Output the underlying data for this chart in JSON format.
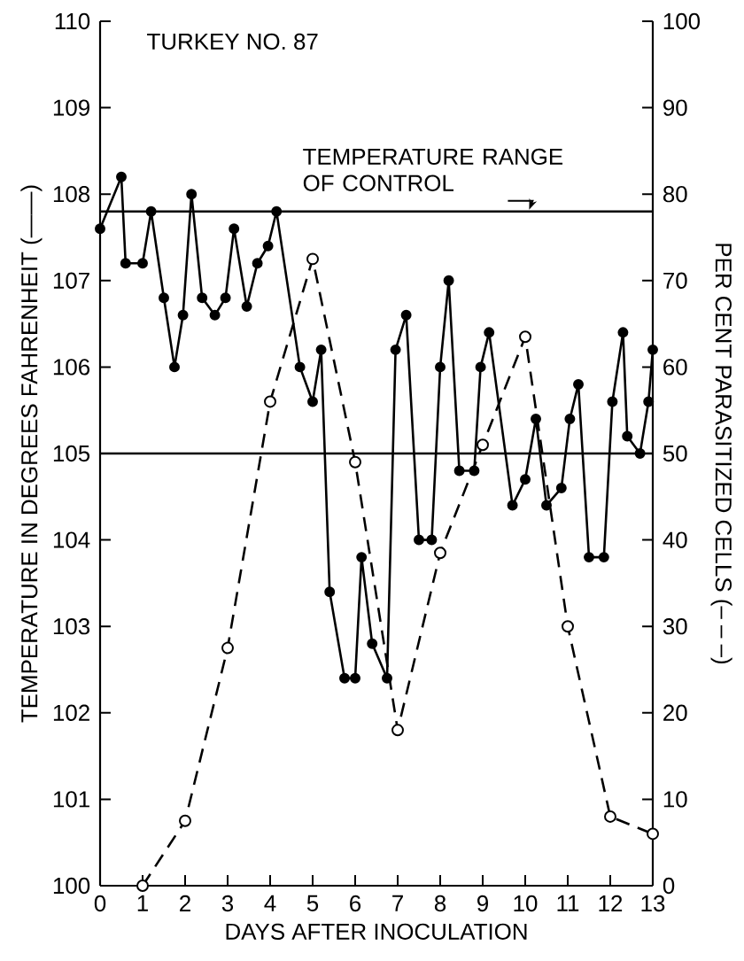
{
  "chart_data": {
    "type": "line",
    "title": "TURKEY NO. 87",
    "xlabel": "DAYS AFTER INOCULATION",
    "ylabel": "TEMPERATURE IN DEGREES FAHRENHEIT (——)",
    "y2label": "PER CENT PARASITIZED CELLS (– – –)",
    "xlim": [
      0,
      13
    ],
    "xticks": [
      0,
      1,
      2,
      3,
      4,
      5,
      6,
      7,
      8,
      9,
      10,
      11,
      12,
      13
    ],
    "ylim": [
      100,
      110
    ],
    "yticks": [
      100,
      101,
      102,
      103,
      104,
      105,
      106,
      107,
      108,
      109,
      110
    ],
    "y2lim": [
      0,
      100
    ],
    "y2ticks": [
      0,
      10,
      20,
      30,
      40,
      50,
      60,
      70,
      80,
      90,
      100
    ],
    "grid": false,
    "marker": "circle",
    "ref_lines": [
      {
        "axis": "y",
        "value": 107.8,
        "label": "TEMPERATURE RANGE OF CONTROL"
      },
      {
        "axis": "y",
        "value": 105
      }
    ],
    "series": [
      {
        "color": "#000000",
        "line_style": "solid",
        "x": [
          0,
          0.5,
          0.6,
          1.0,
          1.2,
          1.5,
          1.75,
          1.95,
          2.15,
          2.4,
          2.7,
          2.95,
          3.15,
          3.45,
          3.7,
          3.95,
          4.15,
          4.7,
          5.0,
          5.2,
          5.4,
          5.75,
          6.0,
          6.15,
          6.4,
          6.75,
          6.95,
          7.2,
          7.5,
          7.8,
          8.0,
          8.2,
          8.45,
          8.8,
          8.95,
          9.15,
          9.7,
          10.0,
          10.25,
          10.5,
          10.85,
          11.05,
          11.25,
          11.5,
          11.85,
          12.05,
          12.3,
          12.4,
          12.7,
          12.9,
          13.0
        ],
        "values": [
          107.6,
          108.2,
          107.2,
          107.2,
          107.8,
          106.8,
          106.0,
          106.6,
          108.0,
          106.8,
          106.6,
          106.8,
          107.6,
          106.7,
          107.2,
          107.4,
          107.8,
          106.0,
          105.6,
          106.2,
          103.4,
          102.4,
          102.4,
          103.8,
          102.8,
          102.4,
          106.2,
          106.6,
          104.0,
          104.0,
          106.0,
          107.0,
          104.8,
          104.8,
          106.0,
          106.4,
          104.4,
          104.7,
          105.4,
          104.4,
          104.6,
          105.4,
          105.8,
          103.8,
          103.8,
          105.6,
          106.4,
          105.2,
          105.0,
          105.6,
          106.2
        ]
      },
      {
        "color": "#000000",
        "line_style": "dashed",
        "axis": "y2",
        "x": [
          1,
          2,
          3,
          4,
          5,
          6,
          7,
          8,
          9,
          10,
          11,
          12,
          13
        ],
        "values": [
          0,
          7.5,
          27.5,
          56,
          72.5,
          49,
          18,
          38.5,
          51,
          63.5,
          30,
          8,
          6
        ]
      }
    ]
  }
}
